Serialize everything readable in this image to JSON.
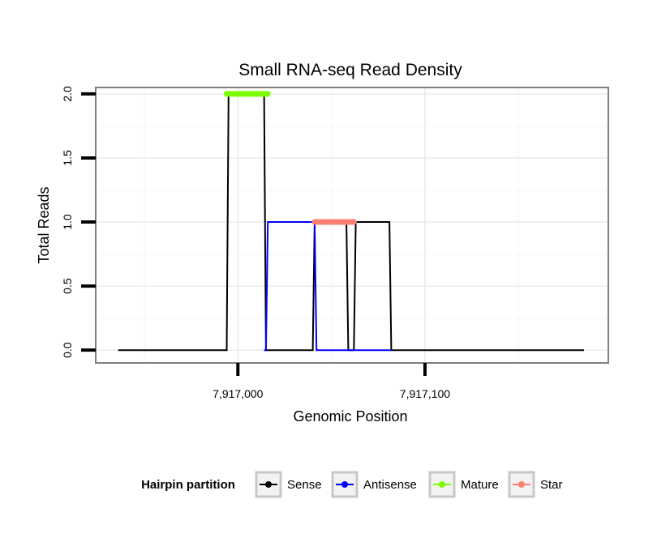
{
  "chart_data": {
    "type": "line",
    "title": "Small RNA-seq Read Density",
    "xlabel": "Genomic Position",
    "ylabel": "Total Reads",
    "xlim": [
      7916924,
      7917198
    ],
    "ylim": [
      -0.1,
      2.05
    ],
    "x_ticks": [
      {
        "value": 7917000,
        "label": "7,917,000"
      },
      {
        "value": 7917100,
        "label": "7,917,100"
      }
    ],
    "y_ticks": [
      {
        "value": 0.0,
        "label": "0.0"
      },
      {
        "value": 0.5,
        "label": "0.5"
      },
      {
        "value": 1.0,
        "label": "1.0"
      },
      {
        "value": 1.5,
        "label": "1.5"
      },
      {
        "value": 2.0,
        "label": "2.0"
      }
    ],
    "grid": true,
    "series": [
      {
        "name": "Sense",
        "color": "#000000",
        "points": [
          [
            7916936,
            0
          ],
          [
            7916994,
            0
          ],
          [
            7916995,
            2
          ],
          [
            7917014,
            2
          ],
          [
            7917015,
            0
          ],
          [
            7917040,
            0
          ],
          [
            7917041,
            1
          ],
          [
            7917058,
            1
          ],
          [
            7917059,
            0
          ],
          [
            7917062,
            0
          ],
          [
            7917063,
            1
          ],
          [
            7917081,
            1
          ],
          [
            7917082,
            0
          ],
          [
            7917185,
            0
          ]
        ]
      },
      {
        "name": "Antisense",
        "color": "#0000ff",
        "points": [
          [
            7917014,
            0
          ],
          [
            7917015,
            0
          ],
          [
            7917016,
            1
          ],
          [
            7917041,
            1
          ],
          [
            7917042,
            0
          ],
          [
            7917082,
            0
          ]
        ]
      },
      {
        "name": "Mature",
        "color": "#7cfc00",
        "points": [
          [
            7916994,
            2
          ],
          [
            7917016,
            2
          ]
        ]
      },
      {
        "name": "Star",
        "color": "#fa8072",
        "points": [
          [
            7917041,
            1
          ],
          [
            7917062,
            1
          ]
        ]
      }
    ],
    "legend": {
      "title": "Hairpin partition",
      "position": "bottom",
      "entries": [
        "Sense",
        "Antisense",
        "Mature",
        "Star"
      ]
    }
  }
}
